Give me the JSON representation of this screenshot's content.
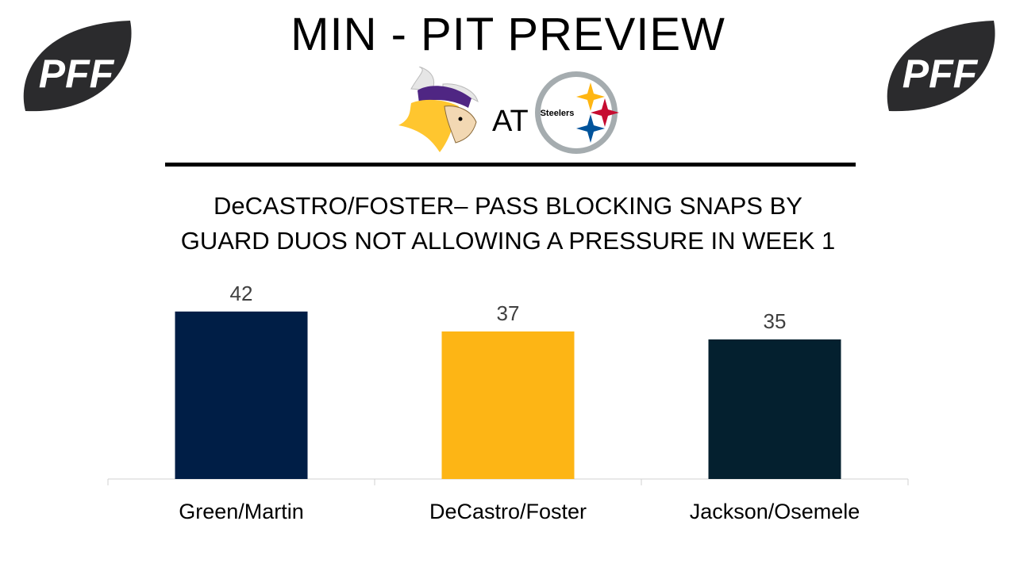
{
  "header": {
    "title": "MIN - PIT PREVIEW",
    "at_label": "AT",
    "logo_text": "PFF",
    "steelers_text": "Steelers",
    "colors": {
      "pff_ball": "#2b2b2d",
      "rule": "#000000"
    }
  },
  "chart_data": {
    "type": "bar",
    "title_lines": [
      "DeCASTRO/FOSTER– PASS BLOCKING SNAPS BY",
      "GUARD DUOS NOT ALLOWING A PRESSURE IN WEEK 1"
    ],
    "categories": [
      "Green/Martin",
      "DeCastro/Foster",
      "Jackson/Osemele"
    ],
    "values": [
      42,
      37,
      35
    ],
    "data_labels": [
      "42",
      "37",
      "35"
    ],
    "colors": [
      "#001e46",
      "#fdb515",
      "#04202f"
    ],
    "ylim": [
      0,
      45
    ],
    "grid": false,
    "legend": "none"
  }
}
